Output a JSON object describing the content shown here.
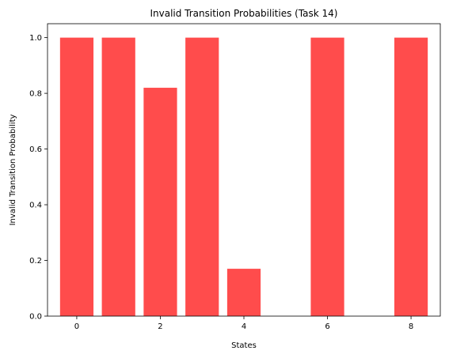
{
  "chart_data": {
    "type": "bar",
    "title": "Invalid Transition Probabilities (Task 14)",
    "xlabel": "States",
    "ylabel": "Invalid Transition Probability",
    "x": [
      0,
      1,
      2,
      3,
      4,
      6,
      8
    ],
    "values": [
      1.0,
      1.0,
      0.82,
      1.0,
      0.17,
      1.0,
      1.0
    ],
    "xlim": [
      -0.7,
      8.7
    ],
    "ylim": [
      0,
      1.05
    ],
    "xticks": [
      0,
      2,
      4,
      6,
      8
    ],
    "yticks": [
      0.0,
      0.2,
      0.4,
      0.6,
      0.8,
      1.0
    ],
    "ytick_labels": [
      "0.0",
      "0.2",
      "0.4",
      "0.6",
      "0.8",
      "1.0"
    ],
    "bar_color": "#ff4c4c",
    "grid": false,
    "legend": "none"
  }
}
